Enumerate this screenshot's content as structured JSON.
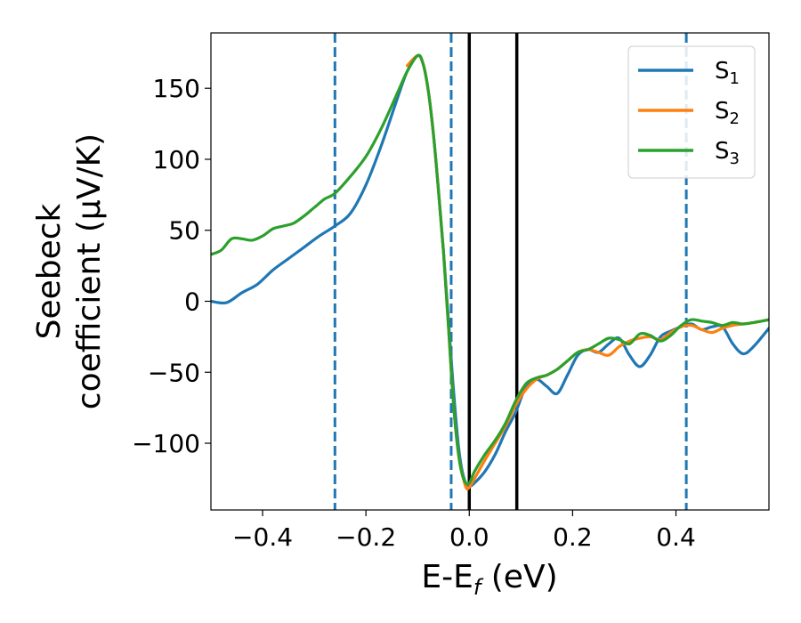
{
  "chart_data": {
    "type": "line",
    "xlabel": {
      "main": "E-E",
      "sub": "f",
      "unit": " (eV)"
    },
    "ylabel": {
      "line1": "Seebeck",
      "line2": "coefficient  (μV/K)"
    },
    "xlim": [
      -0.5,
      0.58
    ],
    "ylim": [
      -147,
      189
    ],
    "x_ticks": [
      -0.4,
      -0.2,
      0.0,
      0.2,
      0.4
    ],
    "x_tick_labels": [
      "−0.4",
      "−0.2",
      "0.0",
      "0.2",
      "0.4"
    ],
    "y_ticks": [
      -100,
      -50,
      0,
      50,
      100,
      150
    ],
    "y_tick_labels": [
      "−100",
      "−50",
      "0",
      "50",
      "100",
      "150"
    ],
    "grid": false,
    "legend_position": "top-right",
    "vertical_lines": [
      {
        "x": -0.26,
        "style": "dashed",
        "color": "#1f77b4"
      },
      {
        "x": -0.035,
        "style": "dashed",
        "color": "#1f77b4"
      },
      {
        "x": 0.0,
        "style": "solid",
        "color": "#000000"
      },
      {
        "x": 0.092,
        "style": "solid",
        "color": "#000000"
      },
      {
        "x": 0.42,
        "style": "dashed",
        "color": "#1f77b4"
      }
    ],
    "series": [
      {
        "name": "S",
        "sub": "1",
        "color": "#1f77b4",
        "points": [
          [
            -0.5,
            0
          ],
          [
            -0.47,
            -1
          ],
          [
            -0.44,
            6
          ],
          [
            -0.41,
            12
          ],
          [
            -0.38,
            22
          ],
          [
            -0.35,
            30
          ],
          [
            -0.32,
            38
          ],
          [
            -0.29,
            46
          ],
          [
            -0.26,
            53
          ],
          [
            -0.23,
            62
          ],
          [
            -0.2,
            82
          ],
          [
            -0.17,
            110
          ],
          [
            -0.14,
            142
          ],
          [
            -0.12,
            162
          ],
          [
            -0.1,
            173
          ],
          [
            -0.09,
            168
          ],
          [
            -0.08,
            150
          ],
          [
            -0.07,
            120
          ],
          [
            -0.06,
            80
          ],
          [
            -0.05,
            35
          ],
          [
            -0.04,
            -15
          ],
          [
            -0.03,
            -65
          ],
          [
            -0.02,
            -105
          ],
          [
            -0.01,
            -125
          ],
          [
            0.0,
            -130
          ],
          [
            0.01,
            -128
          ],
          [
            0.03,
            -120
          ],
          [
            0.05,
            -108
          ],
          [
            0.07,
            -92
          ],
          [
            0.09,
            -78
          ],
          [
            0.11,
            -60
          ],
          [
            0.13,
            -55
          ],
          [
            0.15,
            -60
          ],
          [
            0.17,
            -65
          ],
          [
            0.19,
            -52
          ],
          [
            0.21,
            -38
          ],
          [
            0.23,
            -34
          ],
          [
            0.25,
            -36
          ],
          [
            0.27,
            -30
          ],
          [
            0.29,
            -26
          ],
          [
            0.31,
            -38
          ],
          [
            0.33,
            -46
          ],
          [
            0.35,
            -38
          ],
          [
            0.37,
            -25
          ],
          [
            0.39,
            -21
          ],
          [
            0.41,
            -18
          ],
          [
            0.43,
            -16
          ],
          [
            0.45,
            -20
          ],
          [
            0.47,
            -18
          ],
          [
            0.49,
            -18
          ],
          [
            0.51,
            -30
          ],
          [
            0.53,
            -37
          ],
          [
            0.55,
            -32
          ],
          [
            0.58,
            -19
          ]
        ]
      },
      {
        "name": "S",
        "sub": "2",
        "color": "#ff7f0e",
        "points": [
          [
            -0.12,
            166
          ],
          [
            -0.1,
            173
          ],
          [
            -0.09,
            168
          ],
          [
            -0.08,
            150
          ],
          [
            -0.07,
            120
          ],
          [
            -0.06,
            80
          ],
          [
            -0.05,
            35
          ],
          [
            -0.04,
            -20
          ],
          [
            -0.03,
            -75
          ],
          [
            -0.02,
            -110
          ],
          [
            -0.01,
            -127
          ],
          [
            -0.005,
            -132
          ],
          [
            0.0,
            -131
          ],
          [
            0.01,
            -125
          ],
          [
            0.03,
            -112
          ],
          [
            0.05,
            -100
          ],
          [
            0.07,
            -88
          ],
          [
            0.09,
            -73
          ],
          [
            0.11,
            -62
          ],
          [
            0.13,
            -55
          ],
          [
            0.15,
            -52
          ],
          [
            0.17,
            -48
          ],
          [
            0.19,
            -42
          ],
          [
            0.21,
            -36
          ],
          [
            0.23,
            -34
          ],
          [
            0.25,
            -36
          ],
          [
            0.27,
            -38
          ],
          [
            0.29,
            -32
          ],
          [
            0.31,
            -28
          ],
          [
            0.33,
            -26
          ],
          [
            0.35,
            -25
          ],
          [
            0.37,
            -27
          ],
          [
            0.39,
            -22
          ],
          [
            0.41,
            -18
          ],
          [
            0.43,
            -17
          ],
          [
            0.45,
            -20
          ],
          [
            0.47,
            -22
          ],
          [
            0.49,
            -19
          ],
          [
            0.51,
            -17
          ],
          [
            0.53,
            -16
          ],
          [
            0.55,
            -15
          ],
          [
            0.58,
            -13
          ]
        ]
      },
      {
        "name": "S",
        "sub": "3",
        "color": "#2ca02c",
        "points": [
          [
            -0.5,
            33
          ],
          [
            -0.48,
            36
          ],
          [
            -0.46,
            44
          ],
          [
            -0.44,
            44
          ],
          [
            -0.42,
            43
          ],
          [
            -0.4,
            46
          ],
          [
            -0.38,
            51
          ],
          [
            -0.36,
            53
          ],
          [
            -0.34,
            55
          ],
          [
            -0.32,
            60
          ],
          [
            -0.3,
            66
          ],
          [
            -0.28,
            72
          ],
          [
            -0.26,
            76
          ],
          [
            -0.23,
            88
          ],
          [
            -0.2,
            102
          ],
          [
            -0.17,
            122
          ],
          [
            -0.14,
            146
          ],
          [
            -0.12,
            162
          ],
          [
            -0.1,
            173
          ],
          [
            -0.09,
            168
          ],
          [
            -0.08,
            150
          ],
          [
            -0.07,
            120
          ],
          [
            -0.06,
            80
          ],
          [
            -0.05,
            35
          ],
          [
            -0.04,
            -20
          ],
          [
            -0.03,
            -75
          ],
          [
            -0.02,
            -110
          ],
          [
            -0.01,
            -126
          ],
          [
            0.0,
            -128
          ],
          [
            0.01,
            -120
          ],
          [
            0.03,
            -108
          ],
          [
            0.05,
            -98
          ],
          [
            0.07,
            -86
          ],
          [
            0.09,
            -70
          ],
          [
            0.11,
            -58
          ],
          [
            0.13,
            -54
          ],
          [
            0.15,
            -52
          ],
          [
            0.17,
            -48
          ],
          [
            0.19,
            -42
          ],
          [
            0.21,
            -36
          ],
          [
            0.23,
            -34
          ],
          [
            0.25,
            -30
          ],
          [
            0.27,
            -26
          ],
          [
            0.29,
            -27
          ],
          [
            0.31,
            -30
          ],
          [
            0.33,
            -23
          ],
          [
            0.35,
            -24
          ],
          [
            0.37,
            -28
          ],
          [
            0.39,
            -24
          ],
          [
            0.41,
            -17
          ],
          [
            0.43,
            -13
          ],
          [
            0.45,
            -14
          ],
          [
            0.47,
            -15
          ],
          [
            0.49,
            -17
          ],
          [
            0.51,
            -15
          ],
          [
            0.53,
            -16
          ],
          [
            0.55,
            -15
          ],
          [
            0.58,
            -13
          ]
        ]
      }
    ]
  }
}
